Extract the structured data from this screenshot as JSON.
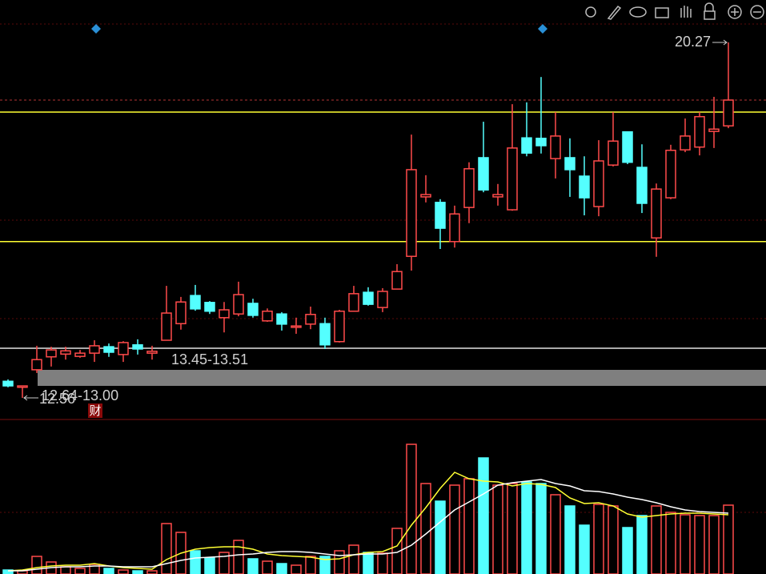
{
  "chart_data": [
    {
      "type": "candlestick",
      "up_color": "#ff4a4a",
      "down_color": "#54ffff",
      "open": [
        12.92,
        12.79,
        13.17,
        13.45,
        13.51,
        13.46,
        13.53,
        13.67,
        13.5,
        13.71,
        13.53,
        13.81,
        14.17,
        14.78,
        14.63,
        14.3,
        14.38,
        14.61,
        14.23,
        14.38,
        14.09,
        14.16,
        14.17,
        13.78,
        14.44,
        14.85,
        14.52,
        14.92,
        15.63,
        16.92,
        16.8,
        15.95,
        16.69,
        17.77,
        16.92,
        16.64,
        18.2,
        18.19,
        17.75,
        17.77,
        17.37,
        16.71,
        17.61,
        18.33,
        17.56,
        16.03,
        16.9,
        17.94,
        18.0,
        18.34,
        18.46
      ],
      "high": [
        12.96,
        12.82,
        13.69,
        13.67,
        13.67,
        13.6,
        13.81,
        13.74,
        13.79,
        13.83,
        13.69,
        14.99,
        14.75,
        15.01,
        14.66,
        14.64,
        15.08,
        14.71,
        14.5,
        14.42,
        14.3,
        14.54,
        14.3,
        14.47,
        14.99,
        14.96,
        14.94,
        15.46,
        18.27,
        17.39,
        16.87,
        16.73,
        17.67,
        18.55,
        17.2,
        18.93,
        18.97,
        19.52,
        18.76,
        18.19,
        17.8,
        18.15,
        18.76,
        18.33,
        18.06,
        17.21,
        18.05,
        18.62,
        18.76,
        19.09,
        20.27
      ],
      "low": [
        12.79,
        12.56,
        13.1,
        13.24,
        13.39,
        13.43,
        13.34,
        13.45,
        13.34,
        13.5,
        13.39,
        13.81,
        14.04,
        14.45,
        14.38,
        13.98,
        14.33,
        14.3,
        14.21,
        14.02,
        13.95,
        14.05,
        13.62,
        13.76,
        14.44,
        14.56,
        14.42,
        14.92,
        15.32,
        16.8,
        15.79,
        15.82,
        16.35,
        17.02,
        16.73,
        16.62,
        17.8,
        17.86,
        17.32,
        16.92,
        16.52,
        16.5,
        17.58,
        17.63,
        16.57,
        15.62,
        16.87,
        17.89,
        17.82,
        17.98,
        18.41
      ],
      "close": [
        12.82,
        12.82,
        13.39,
        13.6,
        13.58,
        13.53,
        13.69,
        13.55,
        13.76,
        13.62,
        13.57,
        14.4,
        14.64,
        14.49,
        14.44,
        14.47,
        14.8,
        14.35,
        14.44,
        14.16,
        14.12,
        14.37,
        13.71,
        14.44,
        14.82,
        14.59,
        14.87,
        15.3,
        17.51,
        16.97,
        16.24,
        16.55,
        17.53,
        17.07,
        16.97,
        17.98,
        17.87,
        18.03,
        18.24,
        17.51,
        16.9,
        17.7,
        18.13,
        17.67,
        16.78,
        17.09,
        17.93,
        18.24,
        18.66,
        18.39,
        19.02
      ],
      "levels": [
        {
          "value": 18.76,
          "color": "#ffff33"
        },
        {
          "value": 15.95,
          "color": "#ffff33"
        }
      ],
      "annotations": [
        "13.45-13.51",
        "12.64-13.00",
        "财"
      ]
    },
    {
      "type": "volume",
      "values": [
        5,
        4,
        22,
        15,
        9,
        7,
        12,
        7,
        5,
        4,
        4,
        63,
        52,
        29,
        20,
        27,
        42,
        19,
        16,
        13,
        11,
        22,
        22,
        29,
        36,
        27,
        26,
        57,
        162,
        113,
        91,
        111,
        119,
        145,
        111,
        113,
        115,
        113,
        99,
        85,
        61,
        87,
        85,
        58,
        73,
        85,
        77,
        74,
        73,
        73,
        86
      ],
      "lines": [
        {
          "color": "#ffff33",
          "values": [
            4,
            5,
            8,
            10,
            11,
            11,
            13,
            10,
            8,
            7,
            6,
            18,
            26,
            31,
            33,
            34,
            34,
            31,
            25,
            23,
            22,
            21,
            18,
            19,
            24,
            27,
            28,
            35,
            61,
            83,
            107,
            127,
            119,
            116,
            115,
            110,
            113,
            112,
            108,
            95,
            88,
            89,
            85,
            75,
            71,
            73,
            75,
            76,
            76,
            75,
            74
          ]
        },
        {
          "color": "#ffffff",
          "values": [
            4,
            4,
            6,
            8,
            9,
            9,
            10,
            10,
            9,
            9,
            9,
            13,
            17,
            20,
            21,
            22,
            24,
            25,
            27,
            28,
            28,
            27,
            25,
            23,
            24,
            25,
            25,
            27,
            36,
            50,
            65,
            80,
            90,
            100,
            111,
            114,
            116,
            118,
            113,
            110,
            104,
            103,
            100,
            96,
            93,
            89,
            84,
            80,
            78,
            77,
            76
          ]
        }
      ]
    }
  ]
}
